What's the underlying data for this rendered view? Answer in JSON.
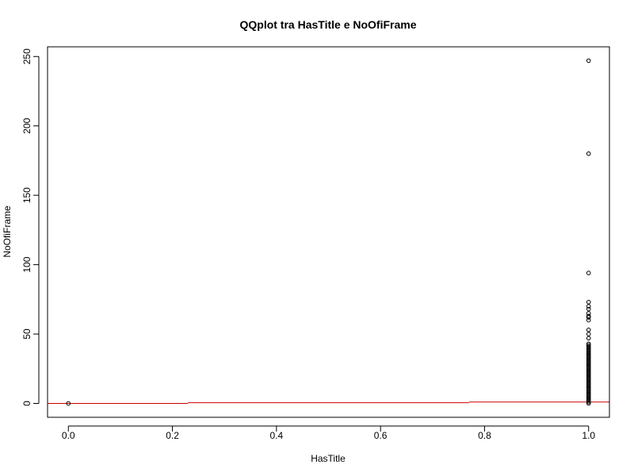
{
  "chart_data": {
    "type": "scatter",
    "title": "QQplot tra HasTitle e NoOfiFrame",
    "xlabel": "HasTitle",
    "ylabel": "NoOfiFrame",
    "xlim": [
      -0.04,
      1.04
    ],
    "ylim": [
      -10,
      257
    ],
    "x_ticks": [
      0.0,
      0.2,
      0.4,
      0.6,
      0.8,
      1.0
    ],
    "x_tick_labels": [
      "0.0",
      "0.2",
      "0.4",
      "0.6",
      "0.8",
      "1.0"
    ],
    "y_ticks": [
      0,
      50,
      100,
      150,
      200,
      250
    ],
    "y_tick_labels": [
      "0",
      "50",
      "100",
      "150",
      "200",
      "250"
    ],
    "grid": false,
    "series": [
      {
        "points": [
          [
            0,
            0
          ],
          [
            1,
            0
          ],
          [
            1,
            1
          ],
          [
            1,
            2
          ],
          [
            1,
            3
          ],
          [
            1,
            4
          ],
          [
            1,
            5
          ],
          [
            1,
            6
          ],
          [
            1,
            7
          ],
          [
            1,
            8
          ],
          [
            1,
            9
          ],
          [
            1,
            10
          ],
          [
            1,
            11
          ],
          [
            1,
            12
          ],
          [
            1,
            13
          ],
          [
            1,
            14
          ],
          [
            1,
            15
          ],
          [
            1,
            16
          ],
          [
            1,
            17
          ],
          [
            1,
            18
          ],
          [
            1,
            19
          ],
          [
            1,
            20
          ],
          [
            1,
            21
          ],
          [
            1,
            22
          ],
          [
            1,
            23
          ],
          [
            1,
            24
          ],
          [
            1,
            25
          ],
          [
            1,
            26
          ],
          [
            1,
            27
          ],
          [
            1,
            28
          ],
          [
            1,
            29
          ],
          [
            1,
            30
          ],
          [
            1,
            31
          ],
          [
            1,
            32
          ],
          [
            1,
            33
          ],
          [
            1,
            34
          ],
          [
            1,
            35
          ],
          [
            1,
            36
          ],
          [
            1,
            37
          ],
          [
            1,
            38
          ],
          [
            1,
            39
          ],
          [
            1,
            40
          ],
          [
            1,
            41
          ],
          [
            1,
            42
          ],
          [
            1,
            43
          ],
          [
            1,
            47
          ],
          [
            1,
            50
          ],
          [
            1,
            53
          ],
          [
            1,
            60
          ],
          [
            1,
            62
          ],
          [
            1,
            63
          ],
          [
            1,
            65
          ],
          [
            1,
            68
          ],
          [
            1,
            70
          ],
          [
            1,
            73
          ],
          [
            1,
            94
          ],
          [
            1,
            180
          ],
          [
            1,
            247
          ]
        ],
        "color": "#000000"
      }
    ],
    "reference_line": {
      "color": "#cc0000",
      "segments": [
        {
          "x": [
            -0.04,
            0.23
          ],
          "y": [
            0,
            0
          ]
        },
        {
          "x": [
            0.23,
            0.77
          ],
          "y": [
            0.5,
            0.5
          ]
        },
        {
          "x": [
            0.77,
            1.04
          ],
          "y": [
            1,
            1
          ]
        }
      ]
    }
  }
}
